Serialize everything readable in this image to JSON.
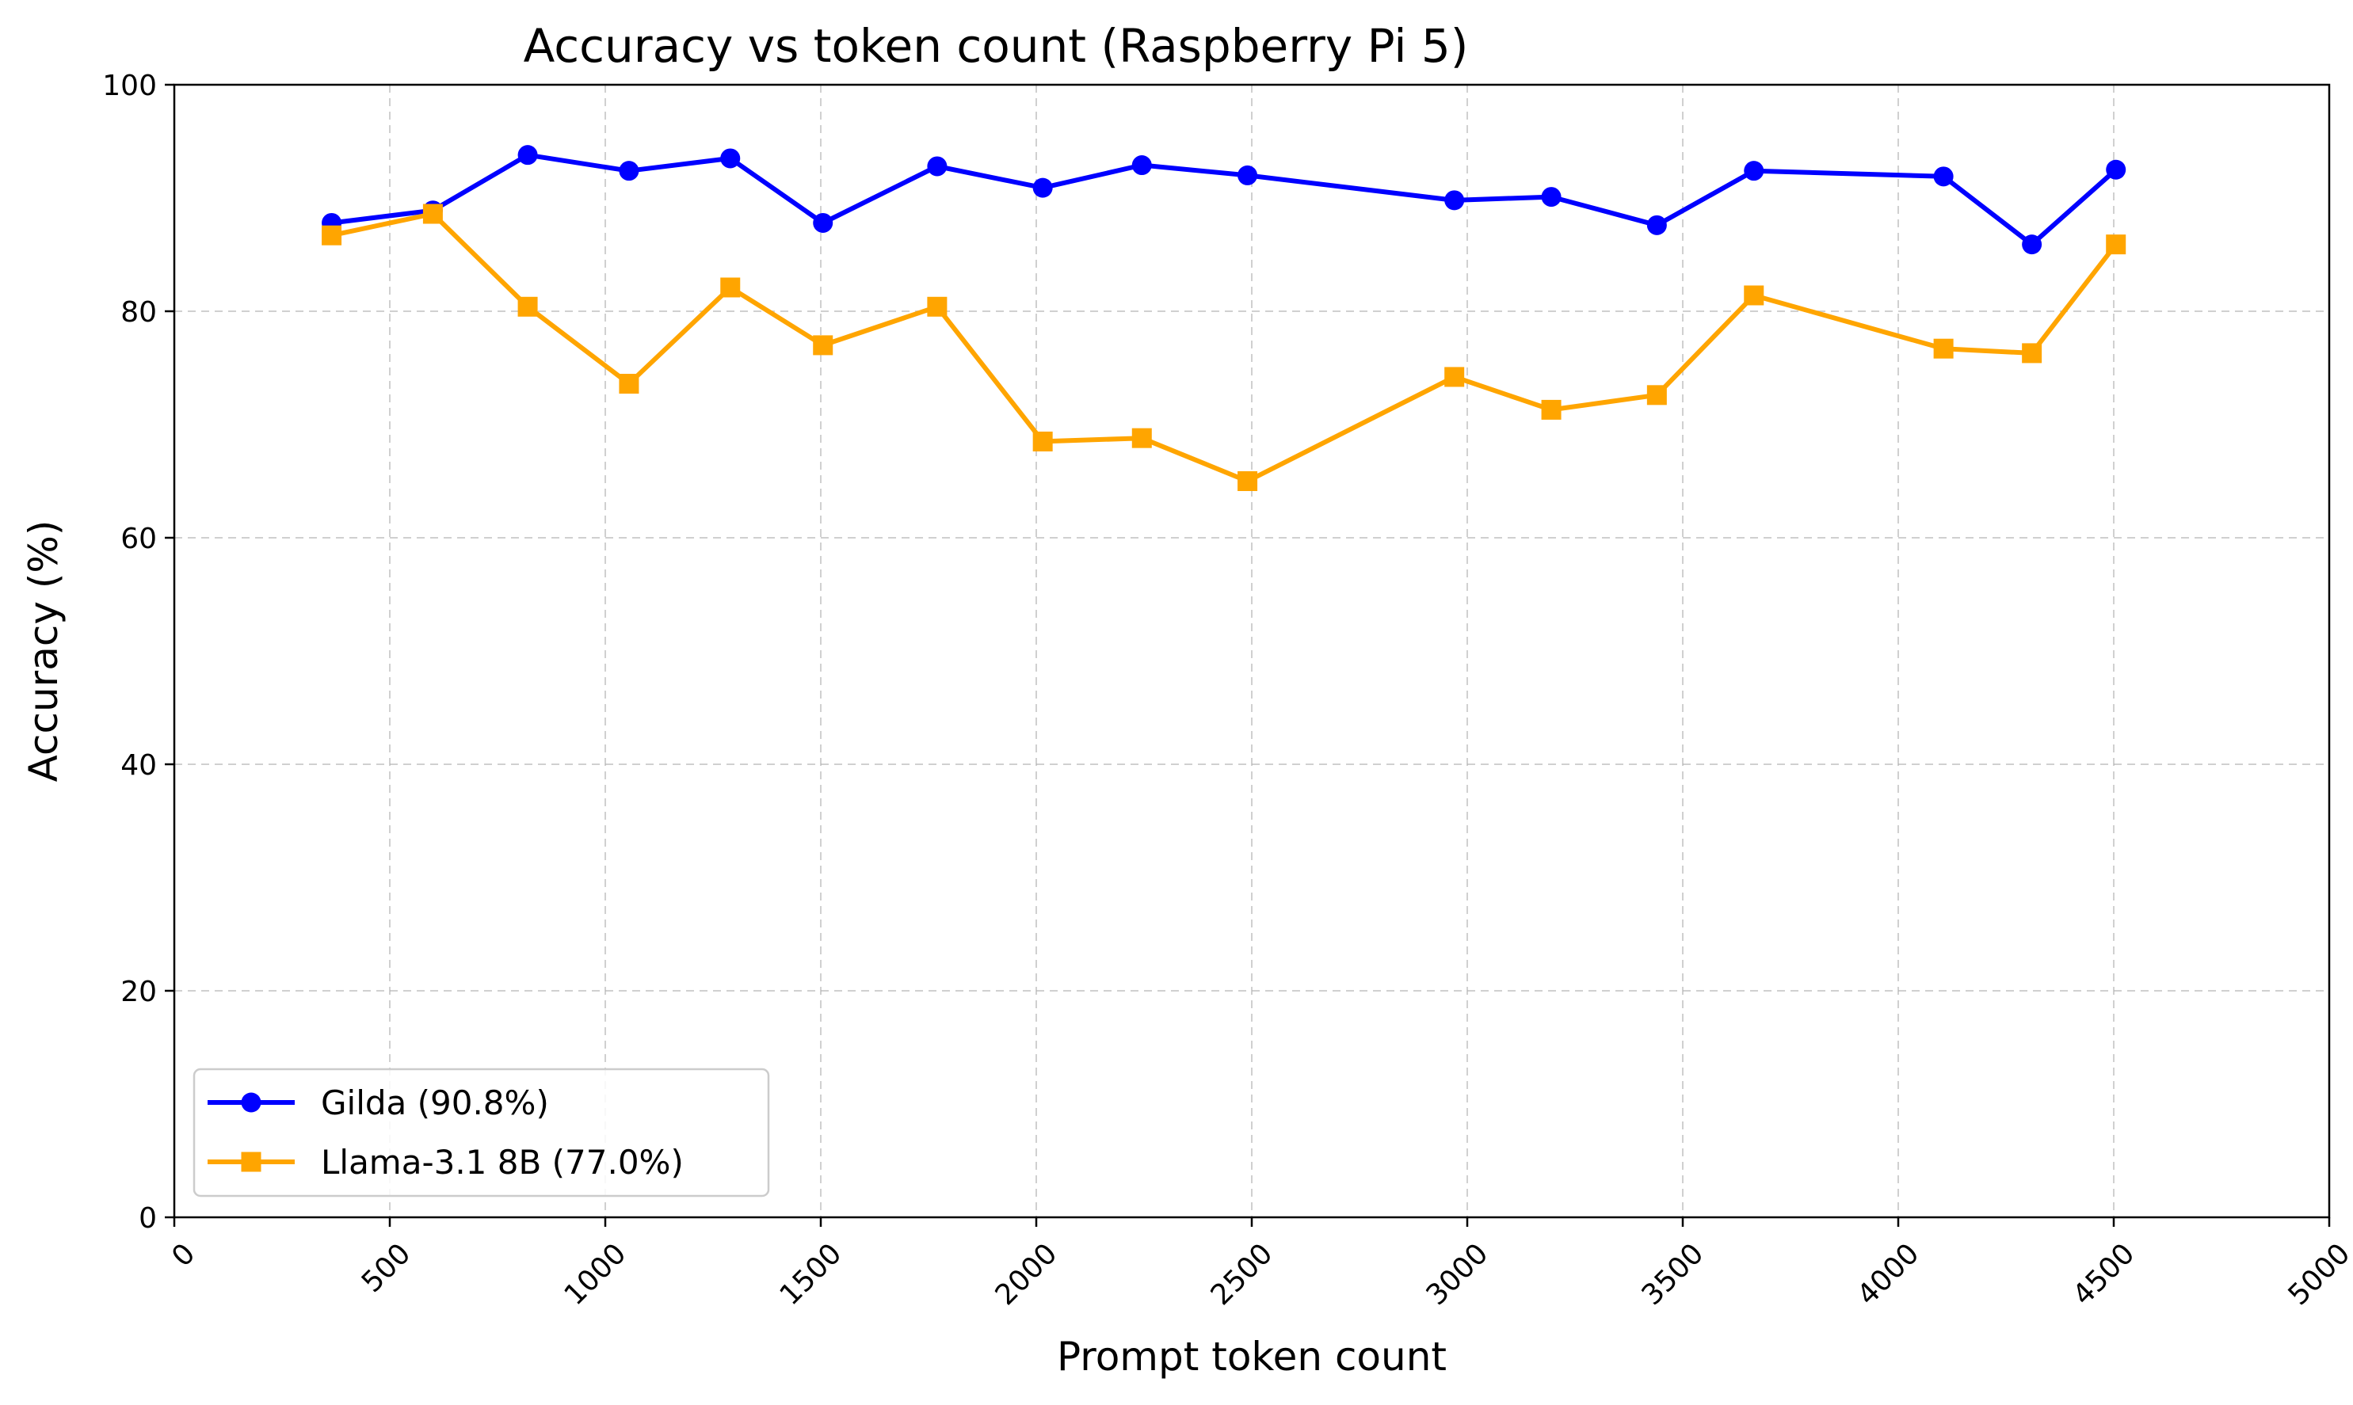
{
  "chart_data": {
    "type": "line",
    "title": "Accuracy vs token count (Raspberry Pi 5)",
    "xlabel": "Prompt token count",
    "ylabel": "Accuracy (%)",
    "xlim": [
      0,
      5000
    ],
    "ylim": [
      0,
      100
    ],
    "xticks": [
      "0",
      "500",
      "1000",
      "1500",
      "2000",
      "2500",
      "3000",
      "3500",
      "4000",
      "4500",
      "5000"
    ],
    "yticks": [
      "0",
      "20",
      "40",
      "60",
      "80",
      "100"
    ],
    "grid": true,
    "legend_position": "lower-left",
    "series": [
      {
        "name": "Gilda (90.8%)",
        "color": "#0000ff",
        "marker": "circle",
        "points": [
          [
            365,
            87.8
          ],
          [
            600,
            88.9
          ],
          [
            820,
            93.8
          ],
          [
            1055,
            92.4
          ],
          [
            1290,
            93.5
          ],
          [
            1505,
            87.8
          ],
          [
            1770,
            92.8
          ],
          [
            2015,
            90.9
          ],
          [
            2245,
            92.9
          ],
          [
            2490,
            92.0
          ],
          [
            2970,
            89.8
          ],
          [
            3195,
            90.1
          ],
          [
            3440,
            87.6
          ],
          [
            3665,
            92.4
          ],
          [
            4105,
            91.9
          ],
          [
            4310,
            85.9
          ],
          [
            4505,
            92.5
          ]
        ]
      },
      {
        "name": "Llama-3.1 8B (77.0%)",
        "color": "#ffa500",
        "marker": "square",
        "points": [
          [
            365,
            86.7
          ],
          [
            600,
            88.6
          ],
          [
            820,
            80.4
          ],
          [
            1055,
            73.6
          ],
          [
            1290,
            82.1
          ],
          [
            1505,
            77.0
          ],
          [
            1770,
            80.4
          ],
          [
            2015,
            68.5
          ],
          [
            2245,
            68.8
          ],
          [
            2490,
            65.0
          ],
          [
            2970,
            74.2
          ],
          [
            3195,
            71.3
          ],
          [
            3440,
            72.6
          ],
          [
            3665,
            81.4
          ],
          [
            4105,
            76.7
          ],
          [
            4310,
            76.3
          ],
          [
            4505,
            85.9
          ]
        ]
      }
    ]
  }
}
